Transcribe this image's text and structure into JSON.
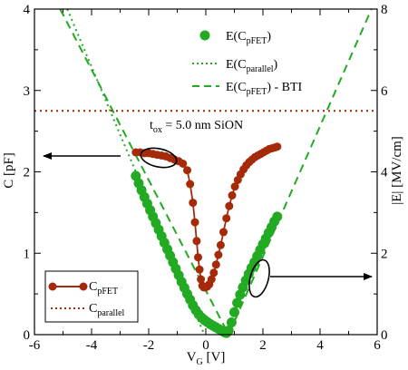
{
  "chart_data": {
    "type": "scatter",
    "xlabel": "V",
    "xlabel_sub": "G",
    "xlabel_unit": " [V]",
    "ylabel_left": "C [pF]",
    "ylabel_right": "|E| [MV/cm]",
    "xlim": [
      -6,
      6
    ],
    "ylim_left": [
      0,
      4
    ],
    "ylim_right": [
      0,
      8
    ],
    "xticks": [
      -6,
      -4,
      -2,
      0,
      2,
      4,
      6
    ],
    "yticks_left": [
      0,
      1,
      2,
      3,
      4
    ],
    "yticks_right": [
      0,
      2,
      4,
      6,
      8
    ],
    "legend_top_right": [
      {
        "base": "E(C",
        "sub": "pFET",
        "tail": ")",
        "style": "green-dots"
      },
      {
        "base": "E(C",
        "sub": "parallel",
        "tail": ")",
        "style": "green-dotted"
      },
      {
        "base": "E(C",
        "sub": "pFET",
        "tail": ") - BTI",
        "style": "green-dashed"
      }
    ],
    "legend_bottom_left": [
      {
        "base": "C",
        "sub": "pFET",
        "tail": "",
        "style": "red-line-dots"
      },
      {
        "base": "C",
        "sub": "parallel",
        "tail": "",
        "style": "red-dotted"
      }
    ],
    "annotation": {
      "base": "t",
      "sub": "ox",
      "tail": " = 5.0 nm SiON"
    },
    "series": [
      {
        "name": "C_pFET",
        "axis": "left",
        "color": "#a52a0a",
        "x": [
          -2.45,
          -2.3,
          -2.15,
          -2.0,
          -1.85,
          -1.7,
          -1.55,
          -1.4,
          -1.25,
          -1.1,
          -0.95,
          -0.8,
          -0.65,
          -0.55,
          -0.45,
          -0.38,
          -0.32,
          -0.27,
          -0.22,
          -0.17,
          -0.12,
          -0.07,
          -0.02,
          0.05,
          0.12,
          0.2,
          0.28,
          0.36,
          0.44,
          0.52,
          0.62,
          0.72,
          0.82,
          0.92,
          1.02,
          1.12,
          1.22,
          1.32,
          1.42,
          1.52,
          1.62,
          1.72,
          1.82,
          1.92,
          2.02,
          2.12,
          2.22,
          2.32,
          2.42,
          2.5
        ],
        "y": [
          2.24,
          2.24,
          2.23,
          2.23,
          2.22,
          2.21,
          2.2,
          2.19,
          2.17,
          2.15,
          2.13,
          2.1,
          2.02,
          1.85,
          1.62,
          1.38,
          1.15,
          0.95,
          0.8,
          0.68,
          0.6,
          0.58,
          0.58,
          0.59,
          0.62,
          0.68,
          0.76,
          0.86,
          0.98,
          1.1,
          1.26,
          1.43,
          1.58,
          1.71,
          1.82,
          1.9,
          1.97,
          2.03,
          2.08,
          2.12,
          2.15,
          2.18,
          2.2,
          2.22,
          2.24,
          2.26,
          2.28,
          2.29,
          2.3,
          2.31
        ]
      },
      {
        "name": "E(C_pFET)",
        "axis": "right",
        "color": "#22aa22",
        "x": [
          -2.45,
          -2.35,
          -2.25,
          -2.15,
          -2.05,
          -1.95,
          -1.85,
          -1.75,
          -1.65,
          -1.55,
          -1.45,
          -1.35,
          -1.25,
          -1.15,
          -1.05,
          -0.95,
          -0.85,
          -0.75,
          -0.65,
          -0.55,
          -0.45,
          -0.35,
          -0.25,
          -0.15,
          -0.05,
          0.05,
          0.15,
          0.25,
          0.35,
          0.45,
          0.55,
          0.65,
          0.72,
          0.8,
          0.9,
          1.0,
          1.1,
          1.2,
          1.3,
          1.4,
          1.5,
          1.6,
          1.7,
          1.8,
          1.9,
          2.0,
          2.1,
          2.2,
          2.3,
          2.4,
          2.5
        ],
        "y": [
          3.9,
          3.72,
          3.55,
          3.38,
          3.22,
          3.06,
          2.9,
          2.74,
          2.58,
          2.42,
          2.26,
          2.1,
          1.94,
          1.78,
          1.62,
          1.46,
          1.3,
          1.15,
          1.0,
          0.86,
          0.72,
          0.6,
          0.5,
          0.42,
          0.36,
          0.31,
          0.26,
          0.22,
          0.18,
          0.14,
          0.1,
          0.06,
          0.04,
          0.1,
          0.3,
          0.55,
          0.78,
          0.98,
          1.16,
          1.33,
          1.49,
          1.64,
          1.78,
          1.93,
          2.08,
          2.22,
          2.36,
          2.5,
          2.64,
          2.78,
          2.9
        ]
      },
      {
        "name": "E(C_parallel)",
        "axis": "right",
        "color": "#22aa22",
        "style": "dotted",
        "x": [
          -4.85,
          -0.05
        ],
        "y": [
          8.0,
          0.0
        ]
      },
      {
        "name": "E(C_pFET) - BTI",
        "axis": "right",
        "color": "#22aa22",
        "style": "dashed",
        "x": [
          -5.1,
          0.8,
          5.8
        ],
        "y": [
          8.0,
          0.0,
          8.0
        ]
      },
      {
        "name": "C_parallel",
        "axis": "left",
        "color": "#a52a0a",
        "style": "dotted",
        "x": [
          -6,
          6
        ],
        "y": [
          2.75,
          2.75
        ]
      }
    ]
  }
}
